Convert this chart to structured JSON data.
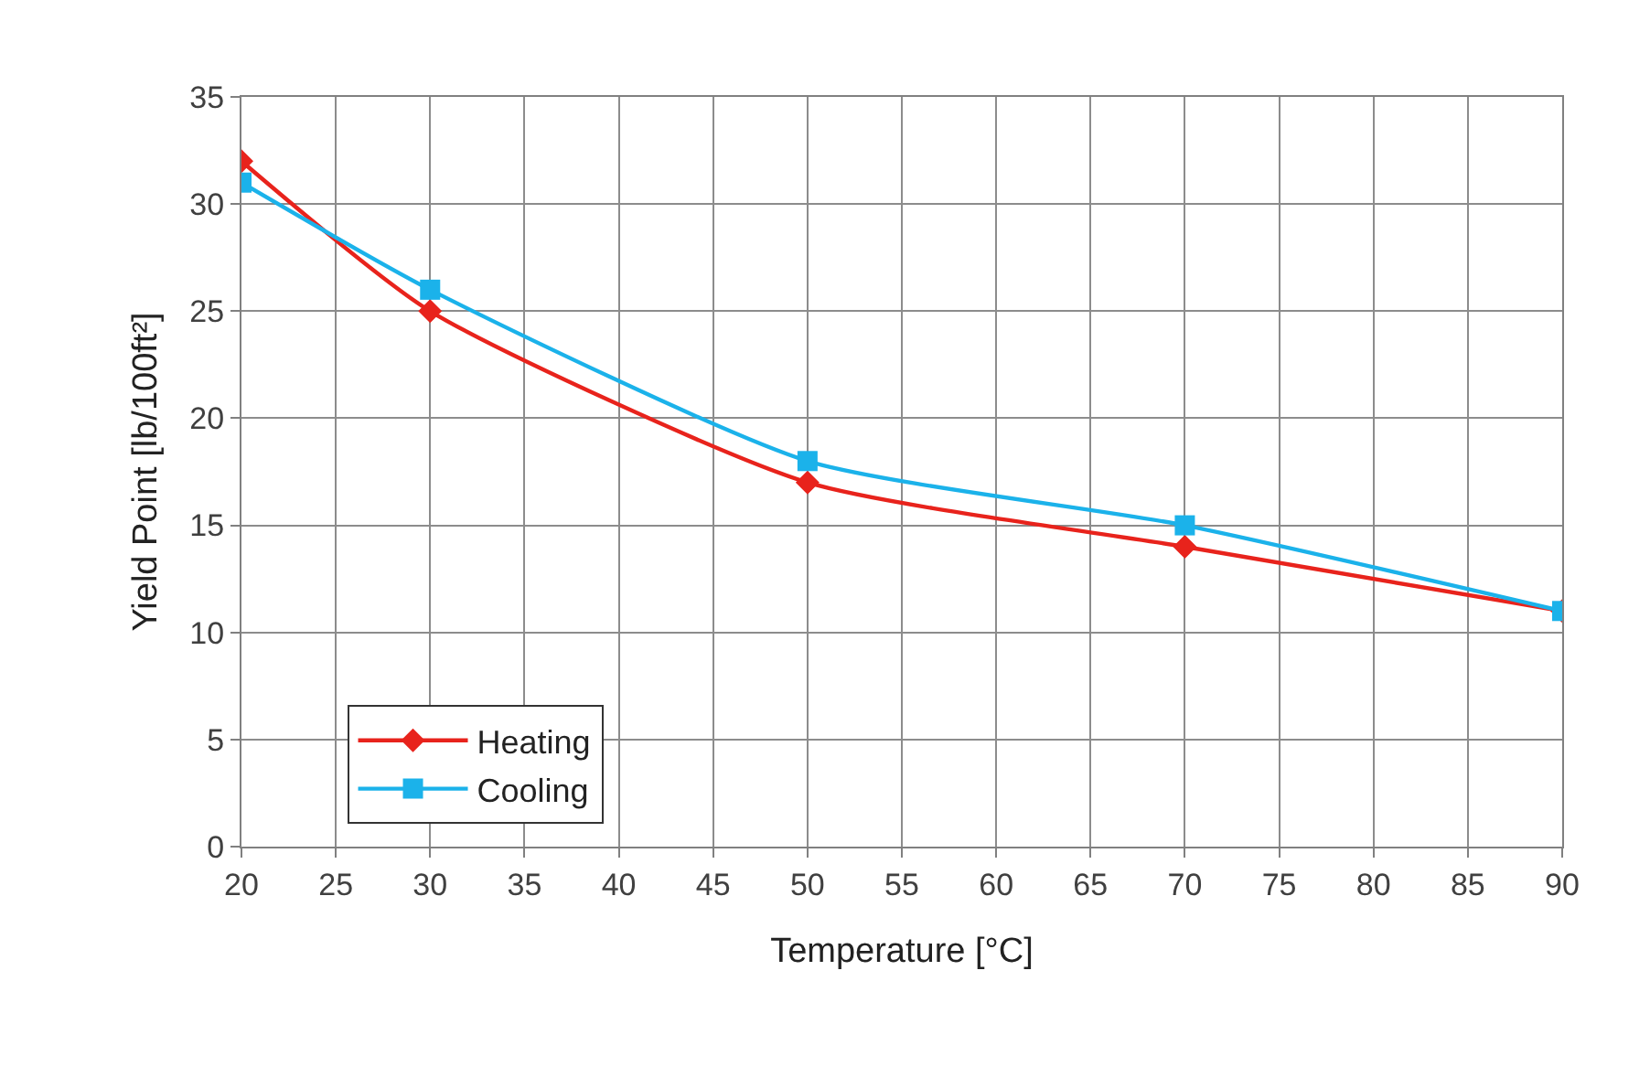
{
  "chart_data": {
    "type": "line",
    "xlabel": "Temperature [°C]",
    "ylabel": "Yield Point [lb/100ft²]",
    "x": [
      20,
      30,
      50,
      70,
      90
    ],
    "series": [
      {
        "name": "Heating",
        "color": "#e8231c",
        "marker": "diamond",
        "values": [
          32,
          25,
          17,
          14,
          11
        ]
      },
      {
        "name": "Cooling",
        "color": "#1bb2ea",
        "marker": "square",
        "values": [
          31,
          26,
          18,
          15,
          11
        ]
      }
    ],
    "xlim": [
      20,
      90
    ],
    "xticks": [
      20,
      25,
      30,
      35,
      40,
      45,
      50,
      55,
      60,
      65,
      70,
      75,
      80,
      85,
      90
    ],
    "ylim": [
      0,
      35
    ],
    "yticks": [
      0,
      5,
      10,
      15,
      20,
      25,
      30,
      35
    ],
    "grid": true,
    "legend": "bottom left",
    "line_style": "solid"
  }
}
